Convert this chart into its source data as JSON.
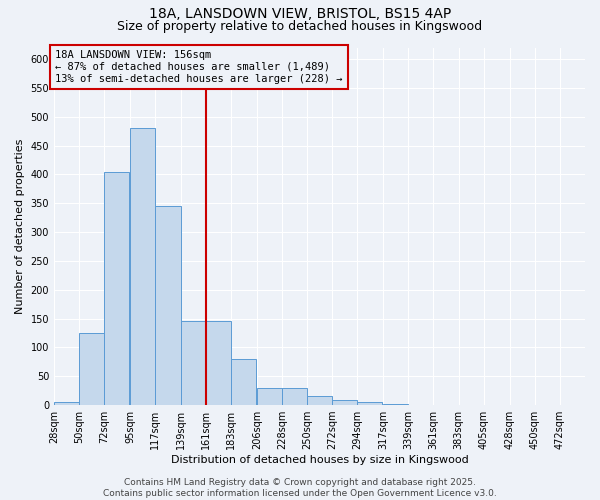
{
  "title_line1": "18A, LANSDOWN VIEW, BRISTOL, BS15 4AP",
  "title_line2": "Size of property relative to detached houses in Kingswood",
  "xlabel": "Distribution of detached houses by size in Kingswood",
  "ylabel": "Number of detached properties",
  "bins": [
    28,
    50,
    72,
    95,
    117,
    139,
    161,
    183,
    206,
    228,
    250,
    272,
    294,
    317,
    339,
    361,
    383,
    405,
    428,
    450,
    472
  ],
  "values": [
    5,
    125,
    405,
    480,
    345,
    145,
    145,
    80,
    30,
    30,
    15,
    8,
    5,
    2,
    1,
    1,
    1,
    0,
    0,
    0,
    1
  ],
  "bar_color": "#c5d8ec",
  "bar_edge_color": "#5b9bd5",
  "property_size_bin": 161,
  "property_label": "18A LANSDOWN VIEW: 156sqm",
  "legend_line2": "← 87% of detached houses are smaller (1,489)",
  "legend_line3": "13% of semi-detached houses are larger (228) →",
  "vline_color": "#cc0000",
  "box_edge_color": "#cc0000",
  "ylim": [
    0,
    620
  ],
  "yticks": [
    0,
    50,
    100,
    150,
    200,
    250,
    300,
    350,
    400,
    450,
    500,
    550,
    600
  ],
  "footer_line1": "Contains HM Land Registry data © Crown copyright and database right 2025.",
  "footer_line2": "Contains public sector information licensed under the Open Government Licence v3.0.",
  "background_color": "#eef2f8",
  "grid_color": "#ffffff",
  "title_fontsize": 10,
  "subtitle_fontsize": 9,
  "axis_label_fontsize": 8,
  "tick_fontsize": 7,
  "annotation_fontsize": 7.5,
  "footer_fontsize": 6.5
}
